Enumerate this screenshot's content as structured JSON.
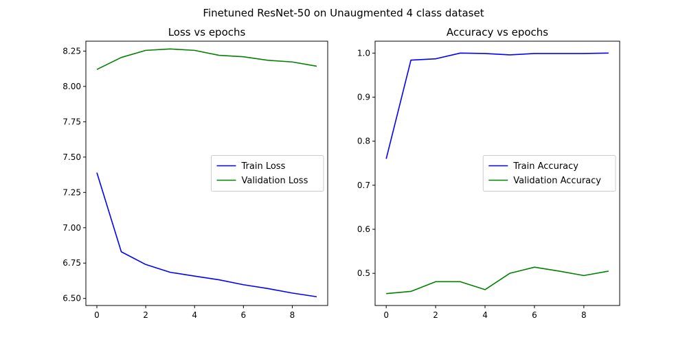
{
  "figure_title": "Finetuned ResNet-50 on Unaugmented 4 class dataset",
  "colors": {
    "train": "#0000ff",
    "validation": "#008000"
  },
  "chart_data": [
    {
      "type": "line",
      "title": "Loss vs epochs",
      "xlabel": "",
      "ylabel": "",
      "x": [
        0,
        1,
        2,
        3,
        4,
        5,
        6,
        7,
        8,
        9
      ],
      "xlim": [
        -0.45,
        9.45
      ],
      "ylim": [
        6.45,
        8.32
      ],
      "xticks": [
        0,
        2,
        4,
        6,
        8
      ],
      "yticks": [
        6.5,
        6.75,
        7.0,
        7.25,
        7.5,
        7.75,
        8.0,
        8.25
      ],
      "ytick_labels": [
        "6.50",
        "6.75",
        "7.00",
        "7.25",
        "7.50",
        "7.75",
        "8.00",
        "8.25"
      ],
      "grid": false,
      "legend_position": "center-right",
      "series": [
        {
          "name": "Train Loss",
          "color": "#0000ff",
          "values": [
            7.39,
            6.83,
            6.74,
            6.685,
            6.658,
            6.632,
            6.597,
            6.57,
            6.538,
            6.512
          ]
        },
        {
          "name": "Validation Loss",
          "color": "#008000",
          "values": [
            8.12,
            8.205,
            8.255,
            8.265,
            8.255,
            8.22,
            8.21,
            8.185,
            8.173,
            8.143
          ]
        }
      ]
    },
    {
      "type": "line",
      "title": "Accuracy vs epochs",
      "xlabel": "",
      "ylabel": "",
      "x": [
        0,
        1,
        2,
        3,
        4,
        5,
        6,
        7,
        8,
        9
      ],
      "xlim": [
        -0.45,
        9.45
      ],
      "ylim": [
        0.427,
        1.027
      ],
      "xticks": [
        0,
        2,
        4,
        6,
        8
      ],
      "yticks": [
        0.5,
        0.6,
        0.7,
        0.8,
        0.9,
        1.0
      ],
      "ytick_labels": [
        "0.5",
        "0.6",
        "0.7",
        "0.8",
        "0.9",
        "1.0"
      ],
      "grid": false,
      "legend_position": "center-right",
      "series": [
        {
          "name": "Train Accuracy",
          "color": "#0000ff",
          "values": [
            0.76,
            0.984,
            0.987,
            1.0,
            0.999,
            0.996,
            0.999,
            0.999,
            0.999,
            1.0
          ]
        },
        {
          "name": "Validation Accuracy",
          "color": "#008000",
          "values": [
            0.454,
            0.459,
            0.481,
            0.481,
            0.463,
            0.5,
            0.514,
            0.505,
            0.495,
            0.505
          ]
        }
      ]
    }
  ]
}
